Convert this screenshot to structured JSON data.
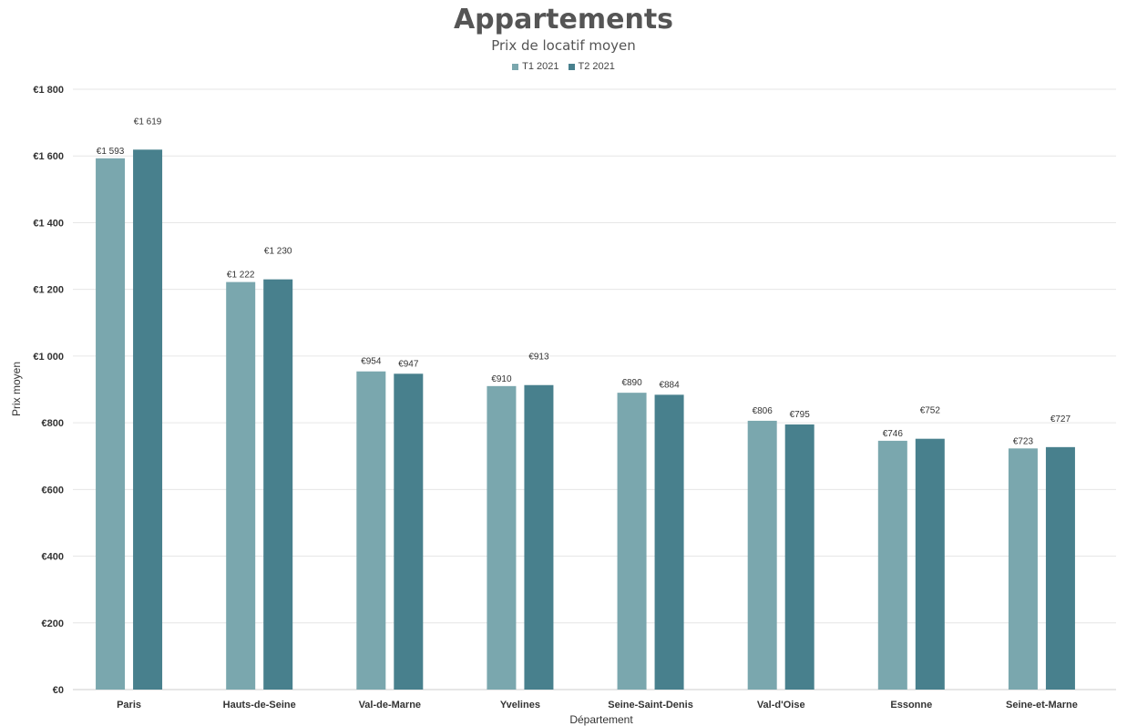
{
  "chart_data": {
    "type": "bar",
    "title": "Appartements",
    "subtitle": "Prix de locatif moyen",
    "xlabel": "Département",
    "ylabel": "Prix moyen",
    "ylim": [
      0,
      1800
    ],
    "yticks": [
      "€0",
      "€200",
      "€400",
      "€600",
      "€800",
      "€1 000",
      "€1 200",
      "€1 400",
      "€1 600",
      "€1 800"
    ],
    "yticks_values": [
      0,
      200,
      400,
      600,
      800,
      1000,
      1200,
      1400,
      1600,
      1800
    ],
    "grid": true,
    "legend_position": "top-center",
    "categories": [
      "Paris",
      "Hauts-de-Seine",
      "Val-de-Marne",
      "Yvelines",
      "Seine-Saint-Denis",
      "Val-d'Oise",
      "Essonne",
      "Seine-et-Marne"
    ],
    "series": [
      {
        "name": "T1 2021",
        "color": "#7aa7ae",
        "values": [
          1593,
          1222,
          954,
          910,
          890,
          806,
          746,
          723
        ],
        "labels": [
          "€1 593",
          "€1 222",
          "€954",
          "€910",
          "€890",
          "€806",
          "€746",
          "€723"
        ]
      },
      {
        "name": "T2 2021",
        "color": "#48808d",
        "values": [
          1619,
          1230,
          947,
          913,
          884,
          795,
          752,
          727
        ],
        "labels": [
          "€1 619",
          "€1 230",
          "€947",
          "€913",
          "€884",
          "€795",
          "€752",
          "€727"
        ]
      }
    ]
  }
}
